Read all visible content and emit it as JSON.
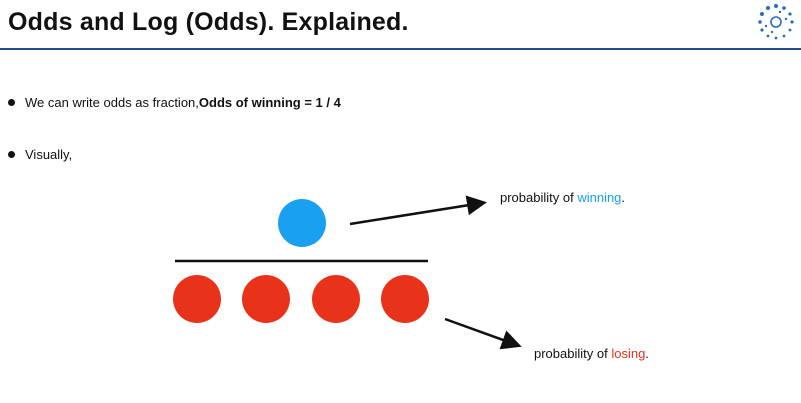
{
  "slide": {
    "title": "Odds and Log (Odds). Explained.",
    "logo_icon": "dotted-circle-logo-icon"
  },
  "bullets": [
    {
      "text": "We can write odds as fraction, ",
      "bold": "Odds of winning = 1 / 4"
    },
    {
      "text": "Visually,"
    }
  ],
  "diagram": {
    "win_label_prefix": "probability of ",
    "win_label_highlight": "winning",
    "win_label_suffix": ".",
    "lose_label_prefix": "probability of ",
    "lose_label_highlight": "losing",
    "lose_label_suffix": ".",
    "winning_count": 1,
    "losing_count": 4,
    "colors": {
      "win": "#1aa0f0",
      "lose": "#e8331a",
      "rule": "#1f4e8c"
    }
  }
}
